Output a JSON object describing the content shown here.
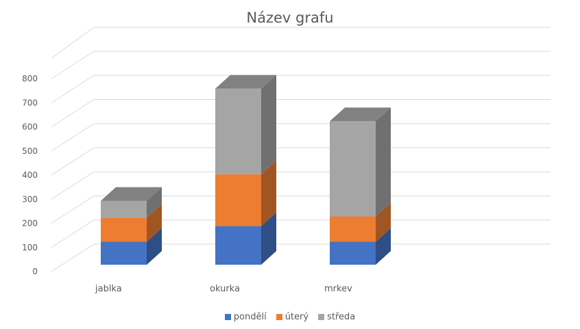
{
  "chart_data": {
    "type": "bar",
    "subtype": "stacked-3d-column",
    "title": "Název grafu",
    "xlabel": "",
    "ylabel": "",
    "categories": [
      "jablka",
      "okurka",
      "mrkev"
    ],
    "series": [
      {
        "name": "pondělí",
        "values": [
          95,
          160,
          95
        ],
        "color": "#4472C4"
      },
      {
        "name": "úterý",
        "values": [
          100,
          215,
          105
        ],
        "color": "#ED7D31"
      },
      {
        "name": "středa",
        "values": [
          70,
          355,
          395
        ],
        "color": "#A5A5A5"
      }
    ],
    "ylim": [
      0,
      800
    ],
    "yticks": [
      "0",
      "100",
      "200",
      "300",
      "400",
      "500",
      "600",
      "700",
      "800"
    ],
    "grid": true,
    "legend_position": "bottom"
  }
}
